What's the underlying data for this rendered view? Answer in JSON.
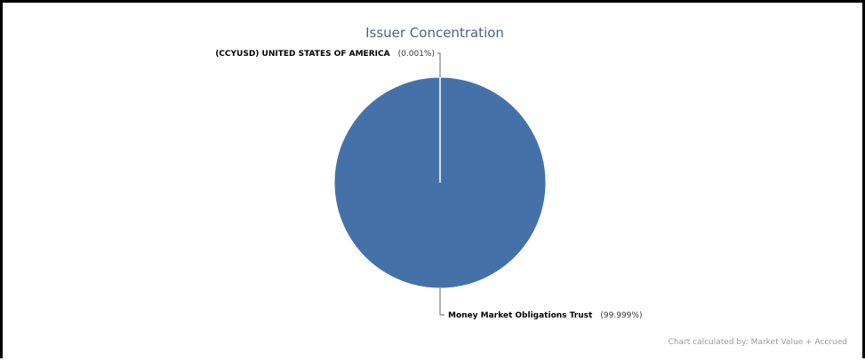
{
  "chart_data": {
    "type": "pie",
    "title": "Issuer Concentration",
    "slices": [
      {
        "label": "(CCYUSD) UNITED STATES OF AMERICA",
        "value": 0.001,
        "display": "(0.001%)"
      },
      {
        "label": "Money Market Obligations Trust",
        "value": 99.999,
        "display": "(99.999%)"
      }
    ],
    "colors": {
      "slice": "#4472a8",
      "slice_edge": "#ffffff",
      "title": "#4a6382"
    },
    "footnote": "Chart calculated by: Market Value + Accrued"
  }
}
